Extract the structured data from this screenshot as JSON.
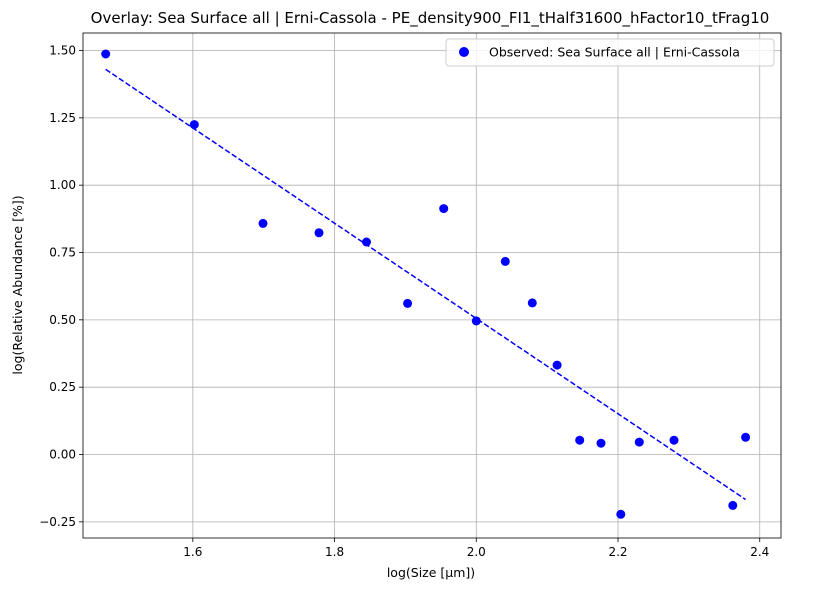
{
  "chart_data": {
    "type": "scatter",
    "title": "Overlay: Sea Surface all | Erni-Cassola - PE_density900_FI1_tHalf31600_hFactor10_tFrag10",
    "xlabel": "log(Size [µm])",
    "ylabel": "log(Relative Abundance [%])",
    "xlim": [
      1.445,
      2.43
    ],
    "ylim": [
      -0.31,
      1.565
    ],
    "xticks": [
      1.6,
      1.8,
      2.0,
      2.2,
      2.4
    ],
    "xtick_labels": [
      "1.6",
      "1.8",
      "2.0",
      "2.2",
      "2.4"
    ],
    "yticks": [
      -0.25,
      0.0,
      0.25,
      0.5,
      0.75,
      1.0,
      1.25,
      1.5
    ],
    "ytick_labels": [
      "−0.25",
      "0.00",
      "0.25",
      "0.50",
      "0.75",
      "1.00",
      "1.25",
      "1.50"
    ],
    "grid": true,
    "legend_position": "top-right",
    "series": [
      {
        "name": "Observed: Sea Surface all | Erni-Cassola",
        "kind": "scatter",
        "color": "#0000ff",
        "x": [
          1.477,
          1.602,
          1.699,
          1.778,
          1.845,
          1.903,
          1.954,
          2.0,
          2.041,
          2.079,
          2.114,
          2.146,
          2.176,
          2.204,
          2.23,
          2.279,
          2.362,
          2.38
        ],
        "y": [
          1.487,
          1.225,
          0.858,
          0.823,
          0.789,
          0.561,
          0.913,
          0.496,
          0.717,
          0.563,
          0.332,
          0.053,
          0.042,
          -0.222,
          0.046,
          0.053,
          -0.189,
          0.064
        ]
      },
      {
        "name": "",
        "kind": "line",
        "style": "dashed",
        "color": "#0000ff",
        "x": [
          1.477,
          2.38
        ],
        "y": [
          1.43,
          -0.167
        ]
      }
    ]
  }
}
